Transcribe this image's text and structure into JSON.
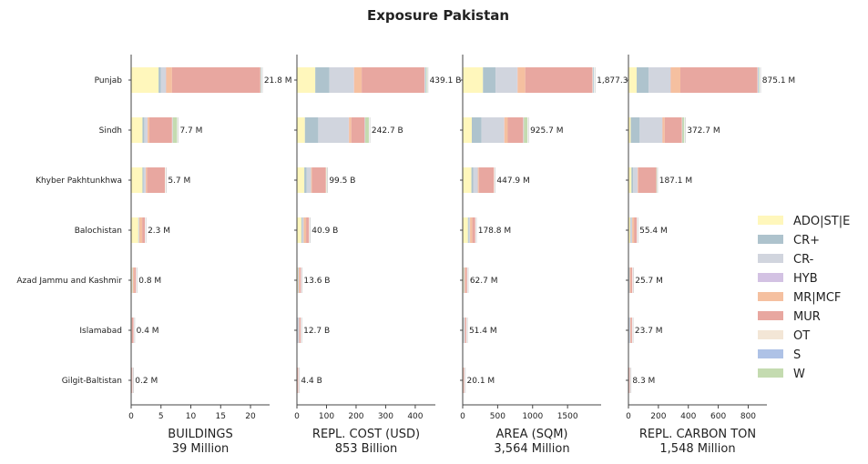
{
  "chart_data": {
    "type": "bar",
    "orientation": "horizontal",
    "stacked": true,
    "title": "Exposure Pakistan",
    "categories": [
      "Punjab",
      "Sindh",
      "Khyber Pakhtunkhwa",
      "Balochistan",
      "Azad Jammu and Kashmir",
      "Islamabad",
      "Gilgit-Baltistan"
    ],
    "legend": {
      "placement": "right",
      "entries": [
        {
          "name": "ADO|ST|E",
          "color": "#fff7bc"
        },
        {
          "name": "CR+",
          "color": "#aec3cd"
        },
        {
          "name": "CR-",
          "color": "#d1d5de"
        },
        {
          "name": "HYB",
          "color": "#d3c2e3"
        },
        {
          "name": "MR|MCF",
          "color": "#f5c0a0"
        },
        {
          "name": "MUR",
          "color": "#e8a7a0"
        },
        {
          "name": "OT",
          "color": "#f3e6d6"
        },
        {
          "name": "S",
          "color": "#aec2e6"
        },
        {
          "name": "W",
          "color": "#c4dbb0"
        }
      ]
    },
    "panels": [
      {
        "xlabel": "BUILDINGS",
        "total_label": "39 Million",
        "xlim": [
          0,
          23.2
        ],
        "xticks": [
          0,
          5,
          10,
          15,
          20
        ],
        "xtick_labels": [
          "0",
          "5",
          "10",
          "15",
          "20"
        ],
        "bar_labels": [
          "21.8 M",
          "7.7 M",
          "5.7 M",
          "2.3 M",
          "0.8 M",
          "0.4 M",
          "0.2 M"
        ],
        "stacks": [
          [
            4.6,
            0.4,
            0.8,
            0.05,
            1.0,
            14.8,
            0.05,
            0.05,
            0.05
          ],
          [
            1.9,
            0.3,
            0.5,
            0.05,
            0.3,
            3.8,
            0.1,
            0.05,
            0.7
          ],
          [
            1.9,
            0.2,
            0.3,
            0.05,
            0.2,
            3.0,
            0.05,
            0.0,
            0.0
          ],
          [
            1.2,
            0.05,
            0.1,
            0.0,
            0.5,
            0.45,
            0.0,
            0.0,
            0.0
          ],
          [
            0.2,
            0.0,
            0.1,
            0.0,
            0.2,
            0.3,
            0.0,
            0.0,
            0.0
          ],
          [
            0.05,
            0.0,
            0.05,
            0.0,
            0.05,
            0.25,
            0.0,
            0.0,
            0.0
          ],
          [
            0.05,
            0.0,
            0.0,
            0.0,
            0.05,
            0.1,
            0.0,
            0.0,
            0.0
          ]
        ]
      },
      {
        "xlabel": "REPL. COST (USD)",
        "total_label": "853 Billion",
        "xlim": [
          0,
          468
        ],
        "xticks": [
          0,
          100,
          200,
          300,
          400
        ],
        "xtick_labels": [
          "0",
          "100",
          "200",
          "300",
          "400"
        ],
        "bar_labels": [
          "439.1 B",
          "242.7 B",
          "99.5 B",
          "40.9 B",
          "13.6 B",
          "12.7 B",
          "4.4 B"
        ],
        "stacks": [
          [
            62,
            48,
            82,
            1,
            26,
            212,
            2,
            3,
            3
          ],
          [
            27,
            45,
            103,
            1,
            8,
            45,
            1,
            1,
            12
          ],
          [
            25,
            8,
            15,
            0,
            3,
            47,
            1,
            0,
            0.5
          ],
          [
            15,
            3,
            5,
            0,
            8,
            9.9,
            0,
            0,
            0
          ],
          [
            3,
            0.5,
            3,
            0,
            3,
            4.1,
            0,
            0,
            0
          ],
          [
            1,
            0.5,
            6,
            0,
            1,
            4.2,
            0,
            0,
            0
          ],
          [
            1,
            0,
            0.5,
            0,
            1,
            1.9,
            0,
            0,
            0
          ]
        ]
      },
      {
        "xlabel": "AREA (SQM)",
        "total_label": "3,564 Million",
        "xlim": [
          0,
          1980
        ],
        "xticks": [
          0,
          500,
          1000,
          1500
        ],
        "xtick_labels": [
          "0",
          "500",
          "1000",
          "1500"
        ],
        "bar_labels": [
          "1,877.3",
          "925.7 M",
          "447.9 M",
          "178.8 M",
          "62.7 M",
          "51.4 M",
          "20.1 M"
        ],
        "stacks": [
          [
            290,
            180,
            310,
            5,
            110,
            960,
            7,
            10,
            5.3
          ],
          [
            130,
            140,
            320,
            5,
            50,
            220,
            5,
            5,
            50.7
          ],
          [
            125,
            25,
            65,
            2,
            15,
            215,
            1,
            0,
            0
          ],
          [
            75,
            10,
            20,
            0,
            33,
            40.8,
            0,
            0,
            0
          ],
          [
            15,
            2,
            10,
            0,
            15,
            20.7,
            0,
            0,
            0
          ],
          [
            10,
            3,
            18,
            0,
            5,
            15.4,
            0,
            0,
            0
          ],
          [
            5,
            0,
            2,
            0,
            5,
            8.1,
            0,
            0,
            0
          ]
        ]
      },
      {
        "xlabel": "REPL. CARBON TON",
        "total_label": "1,548 Million",
        "xlim": [
          0,
          925
        ],
        "xticks": [
          0,
          200,
          400,
          600,
          800
        ],
        "xtick_labels": [
          "0",
          "200",
          "400",
          "600",
          "800"
        ],
        "bar_labels": [
          "875.1 M",
          "372.7 M",
          "187.1 M",
          "55.4 M",
          "25.7 M",
          "23.7 M",
          "8.3 M"
        ],
        "stacks": [
          [
            55,
            80,
            145,
            2,
            65,
            515,
            4,
            5,
            4.1
          ],
          [
            15,
            60,
            150,
            2,
            15,
            115,
            2,
            2,
            11.7
          ],
          [
            20,
            12,
            28,
            1,
            5,
            120,
            1,
            0,
            0.1
          ],
          [
            12,
            4,
            9,
            0,
            12,
            18.4,
            0,
            0,
            0
          ],
          [
            3,
            1,
            5,
            0,
            6,
            10.7,
            0,
            0,
            0
          ],
          [
            2,
            1,
            10,
            0,
            2,
            8.7,
            0,
            0,
            0
          ],
          [
            1,
            0,
            1,
            0,
            2,
            4.3,
            0,
            0,
            0
          ]
        ]
      }
    ]
  }
}
